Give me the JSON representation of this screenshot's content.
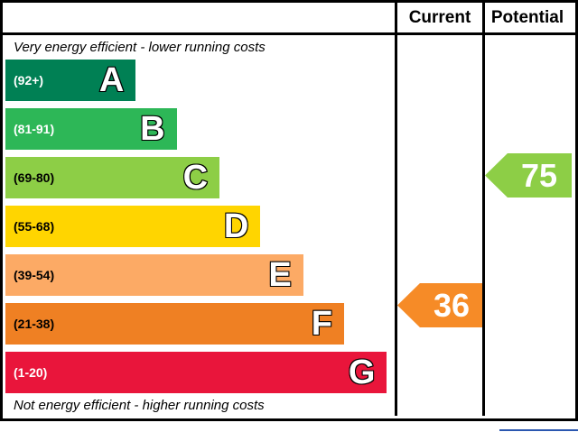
{
  "header": {
    "current_label": "Current",
    "potential_label": "Potential"
  },
  "notes": {
    "top": "Very energy efficient - lower running costs",
    "bottom": "Not energy efficient - higher running costs"
  },
  "chart_data": {
    "type": "bar",
    "kind": "epc-energy-efficiency-rating",
    "columns": [
      "Current",
      "Potential"
    ],
    "bands": [
      {
        "letter": "A",
        "range": "(92+)",
        "min": 92,
        "max": 100,
        "color": "#008054",
        "label_color": "#ffffff",
        "bar_width_pct": 33.5
      },
      {
        "letter": "B",
        "range": "(81-91)",
        "min": 81,
        "max": 91,
        "color": "#2db757",
        "label_color": "#ffffff",
        "bar_width_pct": 44
      },
      {
        "letter": "C",
        "range": "(69-80)",
        "min": 69,
        "max": 80,
        "color": "#8dce46",
        "label_color": "#000000",
        "bar_width_pct": 55
      },
      {
        "letter": "D",
        "range": "(55-68)",
        "min": 55,
        "max": 68,
        "color": "#ffd500",
        "label_color": "#000000",
        "bar_width_pct": 65.5
      },
      {
        "letter": "E",
        "range": "(39-54)",
        "min": 39,
        "max": 54,
        "color": "#fcaa65",
        "label_color": "#000000",
        "bar_width_pct": 76.5
      },
      {
        "letter": "F",
        "range": "(21-38)",
        "min": 21,
        "max": 38,
        "color": "#ef8023",
        "label_color": "#000000",
        "bar_width_pct": 87
      },
      {
        "letter": "G",
        "range": "(1-20)",
        "min": 1,
        "max": 20,
        "color": "#e9153b",
        "label_color": "#ffffff",
        "bar_width_pct": 98
      }
    ],
    "current": {
      "value": "36",
      "band": "F",
      "color": "#f68b27"
    },
    "potential": {
      "value": "75",
      "band": "C",
      "color": "#8dce46"
    }
  },
  "accent": {
    "blue_underline_color": "#2b57b0"
  }
}
